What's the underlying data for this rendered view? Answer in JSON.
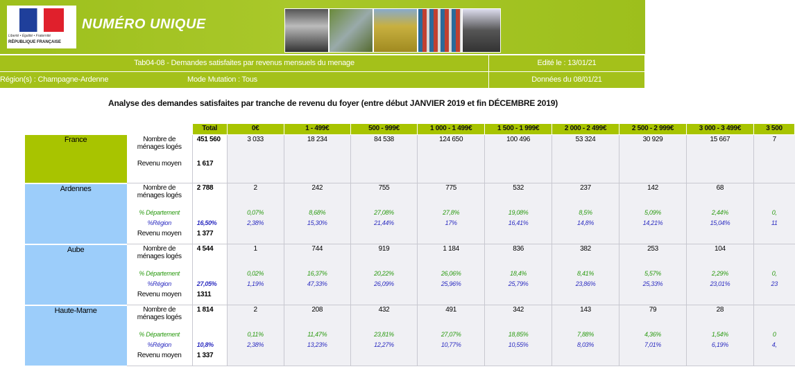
{
  "header": {
    "logo_motto": "Liberté • Égalité • Fraternité",
    "logo_name": "RÉPUBLIQUE FRANÇAISE",
    "title": "NUMÉRO UNIQUE",
    "report": "Tab04-08 - Demandes satisfaites par revenus mensuels du menage",
    "edited": "Edité le : 13/01/21",
    "region": "Région(s) : Champagne-Ardenne",
    "mode": "Mode Mutation : Tous",
    "data_date": "Données du 08/01/21"
  },
  "subtitle": "Analyse des demandes satisfaites par tranche de revenu du foyer (entre début JANVIER 2019 et fin DÉCEMBRE 2019)",
  "table": {
    "columns": [
      "Total",
      "0€",
      "1 - 499€",
      "500 - 999€",
      "1 000 - 1 499€",
      "1 500 - 1 999€",
      "2 000 - 2 499€",
      "2 500 - 2 999€",
      "3 000 - 3 499€",
      "3 500"
    ],
    "regions": [
      {
        "name": "France",
        "rows": [
          {
            "label": "Nombre de ménages logés",
            "values": [
              "451 560",
              "3 033",
              "18 234",
              "84 538",
              "124 650",
              "100 496",
              "53 324",
              "30 929",
              "15 667",
              "7"
            ]
          },
          {
            "label": "Revenu moyen",
            "values": [
              "1 617"
            ]
          }
        ]
      },
      {
        "name": "Ardennes",
        "rows": [
          {
            "label": "Nombre de ménages logés",
            "values": [
              "2 788",
              "2",
              "242",
              "755",
              "775",
              "532",
              "237",
              "142",
              "68",
              null
            ]
          },
          {
            "label": "% Département",
            "values": [
              null,
              "0,07%",
              "8,68%",
              "27,08%",
              "27,8%",
              "19,08%",
              "8,5%",
              "5,09%",
              "2,44%",
              "0,"
            ]
          },
          {
            "label": "%Région",
            "values": [
              "16,50%",
              "2,38%",
              "15,30%",
              "21,44%",
              "17%",
              "16,41%",
              "14,8%",
              "14,21%",
              "15,04%",
              "11"
            ]
          },
          {
            "label": "Revenu moyen",
            "values": [
              "1 377"
            ]
          }
        ]
      },
      {
        "name": "Aube",
        "rows": [
          {
            "label": "Nombre de ménages logés",
            "values": [
              "4 544",
              "1",
              "744",
              "919",
              "1 184",
              "836",
              "382",
              "253",
              "104",
              null
            ]
          },
          {
            "label": "% Département",
            "values": [
              null,
              "0,02%",
              "16,37%",
              "20,22%",
              "26,06%",
              "18,4%",
              "8,41%",
              "5,57%",
              "2,29%",
              "0,"
            ]
          },
          {
            "label": "%Région",
            "values": [
              "27,05%",
              "1,19%",
              "47,33%",
              "26,09%",
              "25,96%",
              "25,79%",
              "23,86%",
              "25,33%",
              "23,01%",
              "23"
            ]
          },
          {
            "label": "Revenu moyen",
            "values": [
              "1311"
            ]
          }
        ]
      },
      {
        "name": "Haute-Marne",
        "rows": [
          {
            "label": "Nombre de ménages logés",
            "values": [
              "1 814",
              "2",
              "208",
              "432",
              "491",
              "342",
              "143",
              "79",
              "28",
              null
            ]
          },
          {
            "label": "% Département",
            "values": [
              null,
              "0,11%",
              "11,47%",
              "23,81%",
              "27,07%",
              "18,85%",
              "7,88%",
              "4,36%",
              "1,54%",
              "0"
            ]
          },
          {
            "label": "%Région",
            "values": [
              "10,8%",
              "2,38%",
              "13,23%",
              "12,27%",
              "10,77%",
              "10,55%",
              "8,03%",
              "7,01%",
              "6,19%",
              "4,"
            ]
          },
          {
            "label": "Revenu moyen",
            "values": [
              "1 337"
            ]
          }
        ]
      }
    ]
  }
}
